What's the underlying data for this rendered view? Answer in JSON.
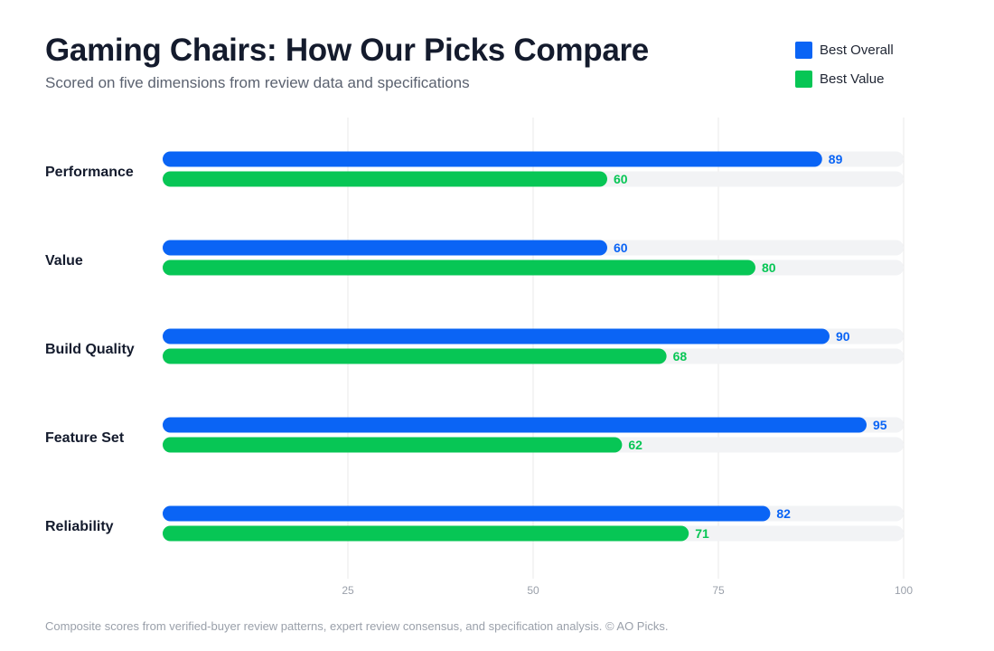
{
  "header": {
    "title": "Gaming Chairs: How Our Picks Compare",
    "subtitle": "Scored on five dimensions from review data and specifications"
  },
  "legend": [
    {
      "label": "Best Overall",
      "color": "#0a64f5"
    },
    {
      "label": "Best Value",
      "color": "#07c655"
    }
  ],
  "chart_data": {
    "type": "bar",
    "orientation": "horizontal",
    "title": "Gaming Chairs: How Our Picks Compare",
    "subtitle": "Scored on five dimensions from review data and specifications",
    "categories": [
      "Performance",
      "Value",
      "Build Quality",
      "Feature Set",
      "Reliability"
    ],
    "series": [
      {
        "name": "Best Overall",
        "color": "#0a64f5",
        "values": [
          89,
          60,
          90,
          95,
          82
        ]
      },
      {
        "name": "Best Value",
        "color": "#07c655",
        "values": [
          60,
          80,
          68,
          62,
          71
        ]
      }
    ],
    "xlim": [
      0,
      100
    ],
    "xticks": [
      25,
      50,
      75,
      100
    ],
    "grid": true,
    "data_labels": true,
    "legend_position": "top-right",
    "track_color": "#f2f3f5",
    "grid_color": "#e8e8e8"
  },
  "footnote": "Composite scores from verified-buyer review patterns, expert review consensus, and specification analysis. © AO Picks."
}
